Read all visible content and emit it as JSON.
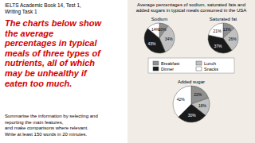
{
  "chart_data": {
    "type": "pie",
    "title": "Average percentages of sodium, saturated fats and\nadded sugars in typical meals consumed in the USA",
    "annotations": [
      "IELTS Academic Book 14, Test 1,\nWriting Task 1",
      "The charts below show\nthe average\npercentages in typical\nmeals of three types of\nnutrients, all of which\nmay be unhealthy if\neaten too much.",
      "Summarise the information by selecting and\nreporting the main features,\nand make comparisons where relevant.\nWrite at least 150 words in 20 minutes."
    ],
    "categories": [
      "Breakfast",
      "Lunch",
      "Dinner",
      "Snacks"
    ],
    "colors": [
      "#909090",
      "#c0c0c0",
      "#1a1a1a",
      "#ffffff"
    ],
    "series": [
      {
        "name": "Sodium",
        "values": [
          10,
          34,
          43,
          14
        ],
        "value_labels": [
          "10%",
          "34%",
          "43%",
          "14%"
        ]
      },
      {
        "name": "Saturated fat",
        "values": [
          13,
          26,
          37,
          21
        ],
        "value_labels": [
          "13%",
          "26%",
          "37%",
          "21%"
        ]
      },
      {
        "name": "Added sugar",
        "values": [
          22,
          18,
          30,
          42
        ],
        "value_labels": [
          "22%",
          "18%",
          "30%",
          "42%"
        ]
      }
    ],
    "data_labels": true,
    "legend": "center"
  }
}
